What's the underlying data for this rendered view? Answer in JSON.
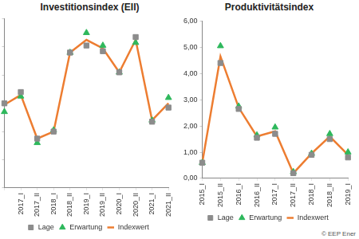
{
  "chart_data": [
    {
      "type": "line",
      "title": "Investitionsindex (EII)",
      "categories": [
        null,
        "2017_I",
        "2017_II",
        "2018_I",
        "2018_II",
        "2019_I",
        "2019_II",
        "2020_I",
        "2020_II",
        "2021_I",
        "2021_II"
      ],
      "series": [
        {
          "name": "Indexwert",
          "color": "#ed7d31",
          "marker": "line",
          "type": "line",
          "values": [
            2.95,
            3.3,
            1.75,
            2.0,
            4.8,
            5.25,
            4.95,
            4.1,
            5.25,
            2.4,
            3.0
          ]
        },
        {
          "name": "Lage",
          "color": "#8c8c8c",
          "marker": "square",
          "type": "scatter",
          "values": [
            3.0,
            3.4,
            1.75,
            2.0,
            4.8,
            5.05,
            4.85,
            4.1,
            5.35,
            2.35,
            2.85
          ]
        },
        {
          "name": "Erwartung",
          "color": "#2eb85c",
          "marker": "triangle",
          "type": "scatter",
          "values": [
            2.7,
            3.25,
            1.6,
            2.05,
            4.8,
            5.5,
            5.05,
            4.1,
            5.15,
            2.4,
            3.2
          ]
        }
      ],
      "ylim": [
        0,
        6
      ],
      "yticks": [
        0,
        1,
        2,
        3,
        4,
        5,
        6
      ],
      "grid": false,
      "legend": "bottom",
      "tick_labels": "x"
    },
    {
      "type": "line",
      "title": "Produktivitätsindex",
      "categories": [
        "2015_I",
        "2015_II",
        "2016_I",
        "2016_II",
        "2017_I",
        "2017_II",
        "2018_I",
        "2018_II",
        "2019_I"
      ],
      "series": [
        {
          "name": "Indexwert",
          "color": "#ed7d31",
          "marker": "line",
          "type": "line",
          "values": [
            0.6,
            4.65,
            2.7,
            1.6,
            1.8,
            0.2,
            0.95,
            1.6,
            0.9
          ]
        },
        {
          "name": "Lage",
          "color": "#8c8c8c",
          "marker": "square",
          "type": "scatter",
          "values": [
            0.6,
            4.4,
            2.65,
            1.55,
            1.7,
            0.2,
            0.9,
            1.5,
            0.8
          ]
        },
        {
          "name": "Erwartung",
          "color": "#2eb85c",
          "marker": "triangle",
          "type": "scatter",
          "values": [
            0.6,
            5.05,
            2.75,
            1.65,
            1.95,
            0.25,
            0.95,
            1.7,
            1.0
          ]
        }
      ],
      "ylim": [
        0,
        6
      ],
      "yticks": [
        {
          "value": 0,
          "label": "0,00"
        },
        {
          "value": 1,
          "label": "1,00"
        },
        {
          "value": 2,
          "label": "2,00"
        },
        {
          "value": 3,
          "label": "3,00"
        },
        {
          "value": 4,
          "label": "4,00"
        },
        {
          "value": 5,
          "label": "5,00"
        },
        {
          "value": 6,
          "label": "6,00"
        }
      ],
      "grid": false,
      "legend": "bottom",
      "source": "© EEP Ener"
    }
  ]
}
